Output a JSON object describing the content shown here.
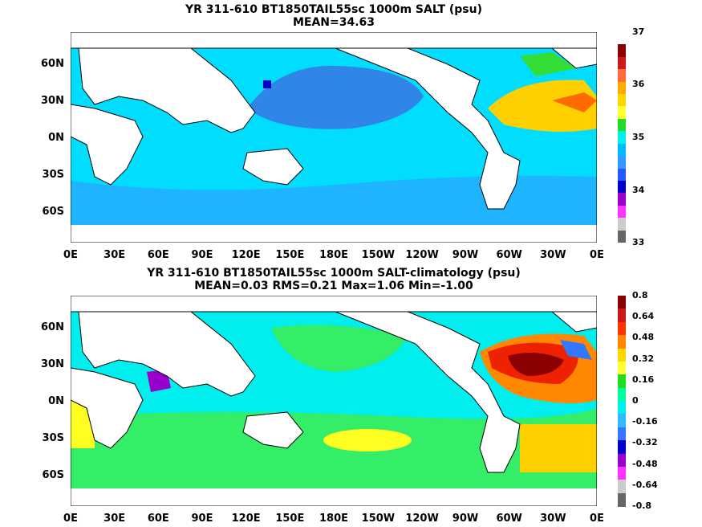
{
  "panels": [
    {
      "title": "YR 311-610 BT1850TAIL55sc 1000m SALT (psu)",
      "subtitle": "MEAN=34.63",
      "colorbar_labels": [
        "37",
        "36",
        "35",
        "34",
        "33"
      ],
      "colorbar_colors": [
        "#ffffff",
        "#8b0000",
        "#cc1a1a",
        "#ff6b3a",
        "#ffaa00",
        "#ffd700",
        "#ffff33",
        "#22dd22",
        "#00eeee",
        "#00bbff",
        "#3399ff",
        "#1e5bff",
        "#0000cc",
        "#9900cc",
        "#ff33ff",
        "#cccccc",
        "#666666"
      ],
      "field_colors": {
        "ocean": "#00ddff",
        "band": "#1fb4ff",
        "north_pacific": "#2f86e6",
        "atlantic": "#ffd000",
        "atlantic_core": "#ff6a00",
        "med": "#c11414",
        "north": "#33dd33",
        "deep": "#0000cc"
      }
    },
    {
      "title": "YR 311-610 BT1850TAIL55sc 1000m SALT-climatology (psu)",
      "subtitle": "MEAN=0.03   RMS=0.21   Max=1.06   Min=-1.00",
      "colorbar_labels": [
        "0.8",
        "0.64",
        "0.48",
        "0.32",
        "0.16",
        "0",
        "-0.16",
        "-0.32",
        "-0.48",
        "-0.64",
        "-0.8"
      ],
      "colorbar_colors": [
        "#8b0000",
        "#cc1a1a",
        "#ff3300",
        "#ff8800",
        "#ffd700",
        "#ffff33",
        "#22dd22",
        "#00ff99",
        "#00eeee",
        "#33bbff",
        "#3377ff",
        "#0000cc",
        "#9900cc",
        "#ff33ff",
        "#cccccc",
        "#666666"
      ],
      "field_colors": {
        "ocean": "#00eeee",
        "green": "#33ee66",
        "yellow": "#ffff22",
        "orange": "#ff8800",
        "red": "#ee2200",
        "darkred": "#8b0000",
        "purple": "#9900cc",
        "blue": "#3377ff"
      }
    }
  ],
  "x_ticks": [
    "0E",
    "30E",
    "60E",
    "90E",
    "120E",
    "150E",
    "180E",
    "150W",
    "120W",
    "90W",
    "60W",
    "30W",
    "0E"
  ],
  "y_ticks": [
    "60N",
    "30N",
    "0N",
    "30S",
    "60S"
  ],
  "chart_data": {
    "type": "heatmap",
    "panels": [
      {
        "variable": "1000m SALT",
        "units": "psu",
        "mean": 34.63,
        "colorbar_range": [
          33,
          37
        ]
      },
      {
        "variable": "1000m SALT-climatology",
        "units": "psu",
        "mean": 0.03,
        "rms": 0.21,
        "max": 1.06,
        "min": -1.0,
        "colorbar_range": [
          -0.8,
          0.8
        ]
      }
    ],
    "x_range": [
      "0E",
      "0E"
    ],
    "y_ticks": [
      "60N",
      "30N",
      "0N",
      "30S",
      "60S"
    ]
  }
}
